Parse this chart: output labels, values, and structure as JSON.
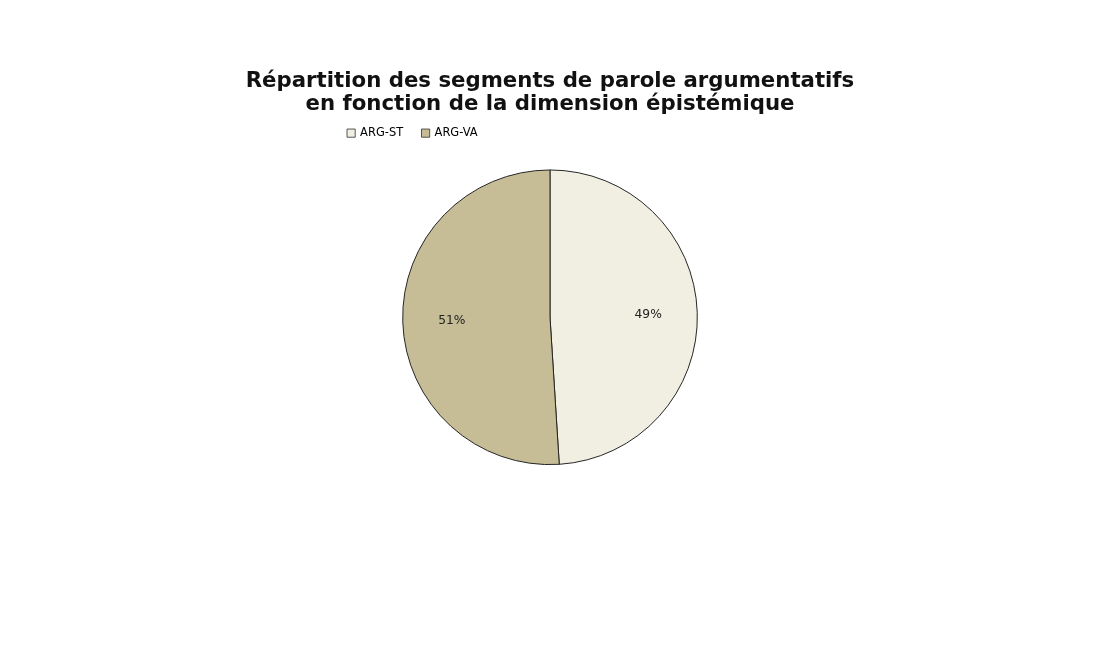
{
  "chart_data": {
    "type": "pie",
    "title": "Répartition des segments de parole argumentatifs\nen fonction de la dimension épistémique",
    "categories": [
      "ARG-ST",
      "ARG-VA"
    ],
    "values": [
      49,
      51
    ],
    "colors": [
      "#f1eee2",
      "#c6bd97"
    ],
    "value_labels": [
      "49%",
      "51%"
    ],
    "legend": "top"
  }
}
